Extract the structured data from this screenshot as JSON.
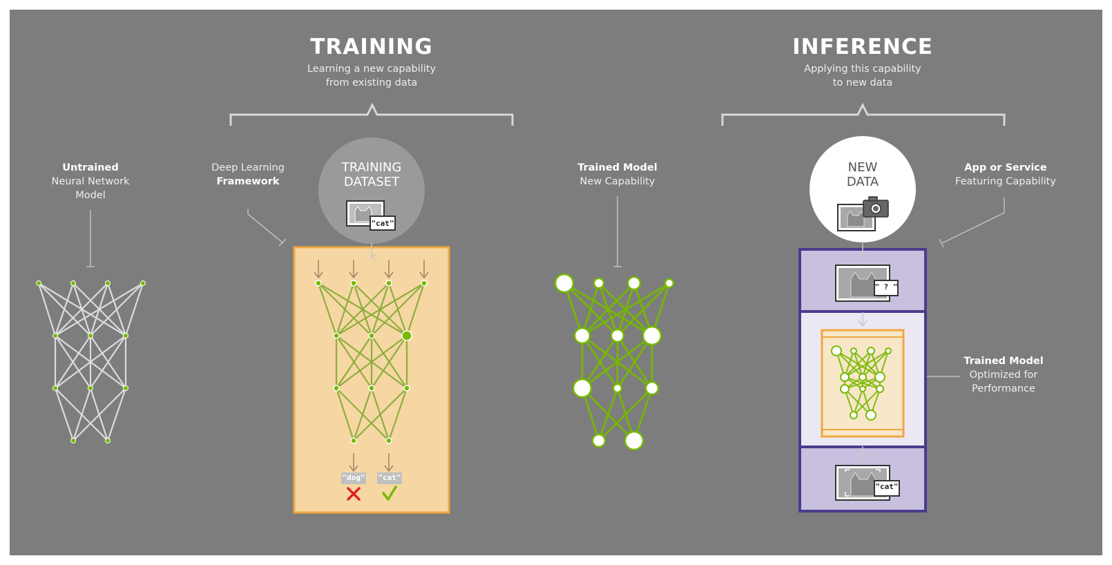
{
  "training": {
    "title": "TRAINING",
    "subtitle_line1": "Learning a new capability",
    "subtitle_line2": "from existing data"
  },
  "inference": {
    "title": "INFERENCE",
    "subtitle_line1": "Applying this capability",
    "subtitle_line2": "to new data"
  },
  "untrained": {
    "line1": "Untrained",
    "line2": "Neural Network",
    "line3": "Model"
  },
  "framework": {
    "line1": "Deep Learning",
    "line2": "Framework"
  },
  "dataset": {
    "line1": "TRAINING",
    "line2": "DATASET",
    "tag": "\"cat\""
  },
  "trained_model": {
    "line1": "Trained Model",
    "line2": "New Capability"
  },
  "new_data": {
    "line1": "NEW",
    "line2": "DATA"
  },
  "app_service": {
    "line1": "App or Service",
    "line2": "Featuring Capability"
  },
  "optimized": {
    "line1": "Trained Model",
    "line2": "Optimized for",
    "line3": "Performance"
  },
  "outputs": {
    "dog": "\"dog\"",
    "cat": "\"cat\""
  },
  "inference_tags": {
    "question": "\" ? \"",
    "cat": "\"cat\""
  },
  "colors": {
    "background": "#7d7d7d",
    "training_box": "#f6d7a3",
    "training_border": "#f0a840",
    "inference_border": "#4a3c8c",
    "inference_panel": "#c8c0de",
    "network_green": "#76b900",
    "network_gray": "#d8d8d8"
  }
}
